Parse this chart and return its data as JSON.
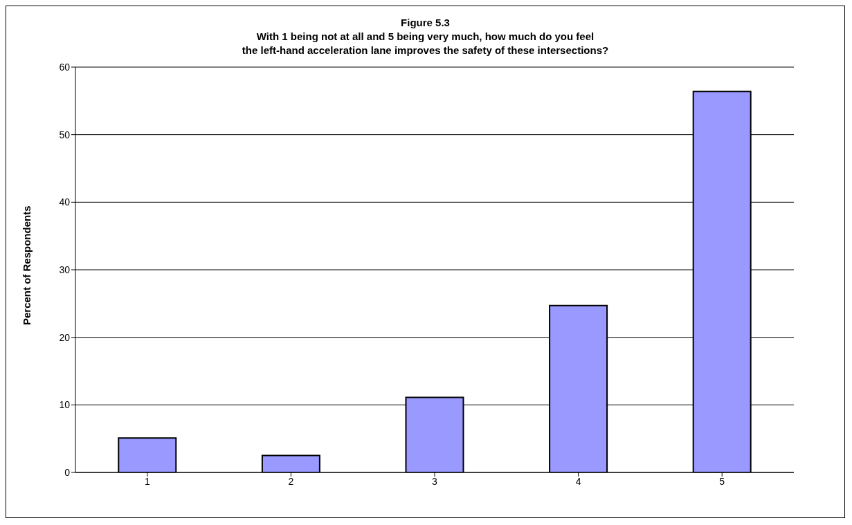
{
  "chart_data": {
    "type": "bar",
    "title": "Figure 5.3\nWith 1 being not at all and 5 being very much, how much do you feel\nthe left-hand acceleration lane improves the safety of these intersections?",
    "ylabel": "Percent of Respondents",
    "categories": [
      "1",
      "2",
      "3",
      "4",
      "5"
    ],
    "series": [
      {
        "color": "#9999ff",
        "values": [
          5.1,
          2.5,
          11.1,
          24.7,
          56.4
        ]
      }
    ],
    "ylim": [
      0,
      60
    ],
    "yticks": [
      0,
      10,
      20,
      30,
      40,
      50,
      60
    ],
    "grid": "y",
    "legend": false
  }
}
